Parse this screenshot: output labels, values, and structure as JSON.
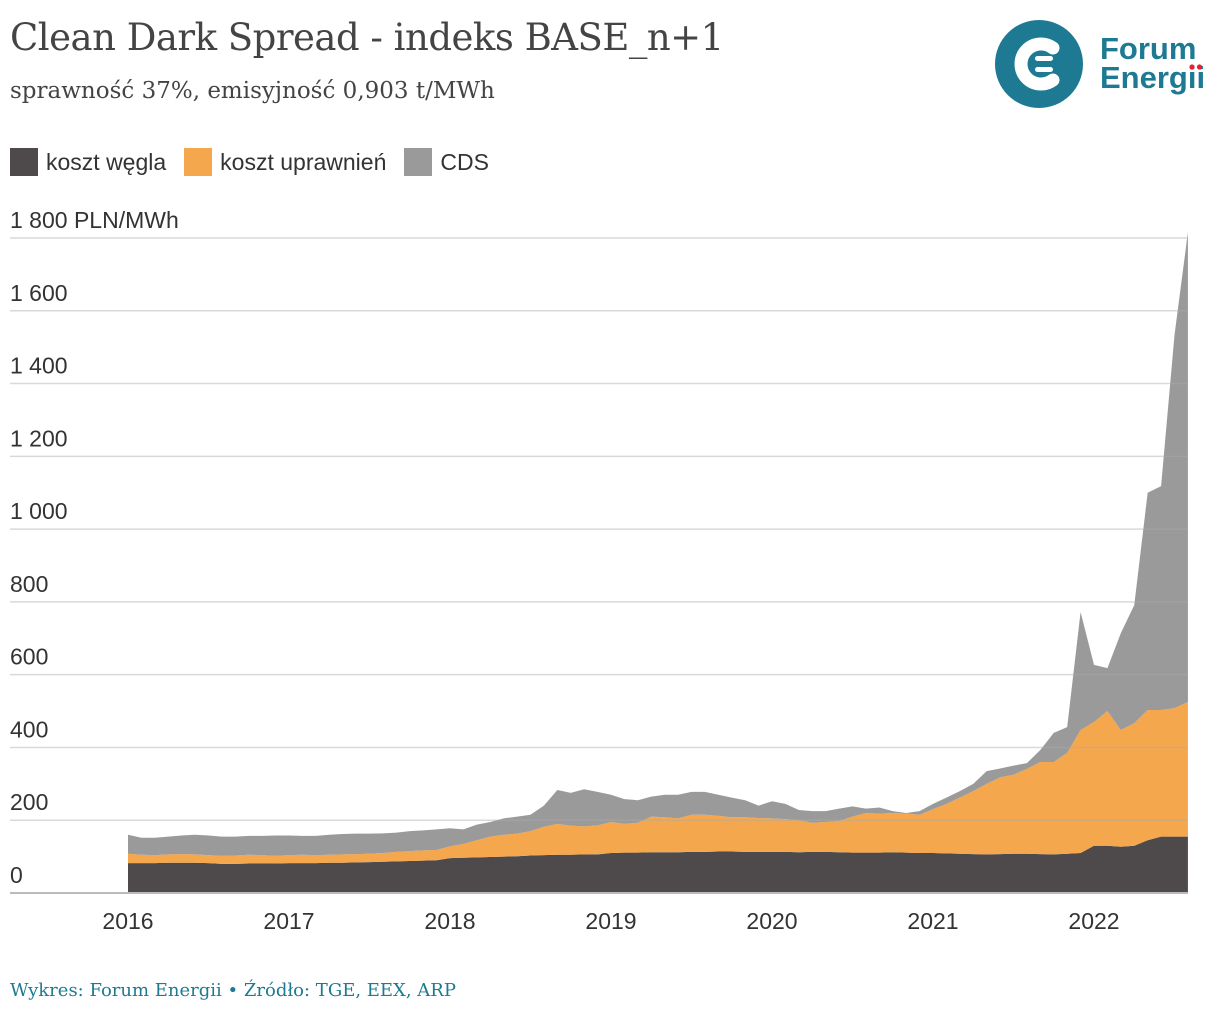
{
  "header": {
    "title": "Clean Dark Spread - indeks BASE_n+1",
    "subtitle": "sprawność 37%, emisyjność 0,903 t/MWh"
  },
  "logo": {
    "line1": "Forum",
    "line2": "Energii",
    "color": "#1d7a92",
    "dot_color": "#e5232e"
  },
  "footer": {
    "text": "Wykres: Forum Energii • Źródło: TGE, EEX, ARP"
  },
  "chart_data": {
    "type": "area",
    "stacked": true,
    "title": "Clean Dark Spread - indeks BASE_n+1",
    "subtitle": "sprawność 37%, emisyjność 0,903 t/MWh",
    "ylabel": "PLN/MWh",
    "ylim": [
      0,
      1800
    ],
    "yticks": [
      0,
      200,
      400,
      600,
      800,
      1000,
      1200,
      1400,
      1600,
      1800
    ],
    "ytick_labels": [
      "0",
      "200",
      "400",
      "600",
      "800",
      "1 000",
      "1 200",
      "1 400",
      "1 600",
      "1 800 PLN/MWh"
    ],
    "xticks": [
      "2016",
      "2017",
      "2018",
      "2019",
      "2020",
      "2021",
      "2022"
    ],
    "x_start": "2016-01",
    "x_frequency": "monthly",
    "n_points": 80,
    "grid": true,
    "legend_position": "top-left",
    "series": [
      {
        "name": "koszt węgla",
        "color": "#4e4a4b",
        "values": [
          82,
          82,
          82,
          83,
          83,
          83,
          82,
          80,
          80,
          81,
          81,
          81,
          82,
          82,
          82,
          83,
          83,
          84,
          85,
          86,
          87,
          88,
          89,
          90,
          96,
          97,
          98,
          99,
          100,
          101,
          103,
          104,
          105,
          105,
          106,
          106,
          110,
          111,
          111,
          112,
          112,
          112,
          113,
          113,
          114,
          114,
          113,
          113,
          113,
          113,
          112,
          113,
          113,
          112,
          111,
          111,
          111,
          112,
          111,
          110,
          110,
          109,
          108,
          107,
          106,
          107,
          108,
          108,
          107,
          106,
          108,
          110,
          130,
          130,
          127,
          130,
          145,
          155,
          155,
          155
        ]
      },
      {
        "name": "koszt uprawnień",
        "color": "#f4a74d",
        "values": [
          26,
          23,
          22,
          23,
          24,
          23,
          22,
          22,
          23,
          24,
          23,
          21,
          22,
          23,
          22,
          22,
          23,
          23,
          23,
          24,
          26,
          27,
          28,
          28,
          32,
          38,
          47,
          56,
          60,
          62,
          67,
          78,
          85,
          80,
          77,
          80,
          85,
          79,
          82,
          98,
          96,
          93,
          102,
          102,
          98,
          94,
          95,
          93,
          92,
          90,
          88,
          80,
          82,
          86,
          99,
          109,
          107,
          108,
          107,
          105,
          120,
          136,
          154,
          173,
          194,
          211,
          217,
          233,
          253,
          254,
          277,
          338,
          340,
          370,
          321,
          337,
          358,
          348,
          353,
          370
        ]
      },
      {
        "name": "CDS",
        "color": "#9a9a9a",
        "values": [
          52,
          47,
          48,
          49,
          51,
          54,
          54,
          53,
          52,
          52,
          53,
          56,
          54,
          52,
          53,
          55,
          56,
          56,
          55,
          54,
          53,
          55,
          55,
          57,
          50,
          40,
          43,
          40,
          45,
          47,
          45,
          58,
          93,
          90,
          102,
          92,
          75,
          68,
          62,
          55,
          62,
          65,
          63,
          63,
          58,
          54,
          47,
          34,
          47,
          42,
          28,
          32,
          30,
          34,
          28,
          12,
          17,
          5,
          2,
          10,
          15,
          17,
          18,
          20,
          35,
          24,
          25,
          16,
          33,
          80,
          71,
          324,
          157,
          118,
          266,
          324,
          597,
          615,
          1025,
          1291
        ]
      }
    ]
  }
}
